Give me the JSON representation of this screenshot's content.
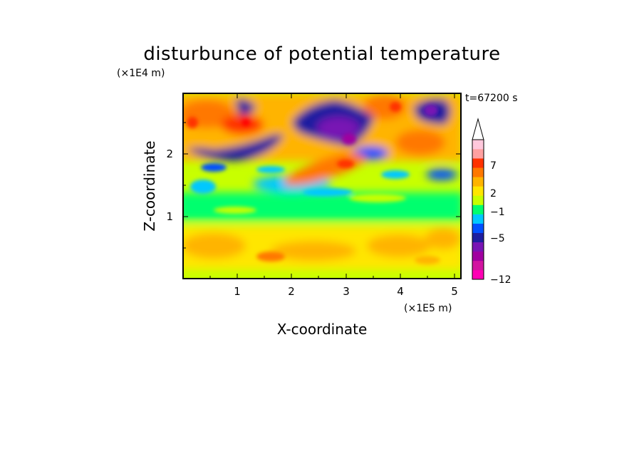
{
  "chart_data": {
    "type": "heatmap",
    "title": "disturbunce of potential temperature",
    "xlabel": "X-coordinate",
    "ylabel": "Z-coordinate",
    "x_scale_label": "(×1E5 m)",
    "y_scale_label": "(×1E4 m)",
    "time_label": "t=67200 s",
    "xlim": [
      0,
      5.12
    ],
    "ylim": [
      0,
      2.95
    ],
    "x_ticks": [
      "1",
      "2",
      "3",
      "4",
      "5"
    ],
    "y_ticks": [
      "1",
      "2"
    ],
    "colorbar": {
      "labels": [
        "7",
        "2",
        "−1",
        "−5",
        "−12"
      ],
      "colors": [
        "#ff00b4",
        "#d214a0",
        "#a000a0",
        "#7814b4",
        "#1e1ea0",
        "#0050ff",
        "#00c8ff",
        "#00ff6e",
        "#c8ff00",
        "#ffe600",
        "#ffb400",
        "#ff7800",
        "#ff3200",
        "#ffa0a0",
        "#ffc8dc"
      ],
      "extend": "max"
    },
    "features": [
      {
        "x": 0.15,
        "z": 2.55,
        "value": 5
      },
      {
        "x": 0.55,
        "z": 2.65,
        "value": 6
      },
      {
        "x": 1.0,
        "z": 2.45,
        "value": 5
      },
      {
        "x": 1.2,
        "z": 2.0,
        "value": -4
      },
      {
        "x": 0.6,
        "z": 1.95,
        "value": -4
      },
      {
        "x": 1.1,
        "z": 2.8,
        "value": -5
      },
      {
        "x": 2.6,
        "z": 2.55,
        "value": -6
      },
      {
        "x": 3.05,
        "z": 2.35,
        "value": -8
      },
      {
        "x": 3.0,
        "z": 1.8,
        "value": 7
      },
      {
        "x": 2.7,
        "z": 2.0,
        "value": 4
      },
      {
        "x": 3.4,
        "z": 2.8,
        "value": 5
      },
      {
        "x": 3.9,
        "z": 2.2,
        "value": 4
      },
      {
        "x": 4.5,
        "z": 2.75,
        "value": -6
      },
      {
        "x": 4.8,
        "z": 2.3,
        "value": 4
      },
      {
        "x": 4.4,
        "z": 1.95,
        "value": -3
      },
      {
        "x": 0.5,
        "z": 0.55,
        "value": 3
      },
      {
        "x": 2.2,
        "z": 0.45,
        "value": 3
      },
      {
        "x": 3.8,
        "z": 0.55,
        "value": 3
      },
      {
        "x": 4.7,
        "z": 0.65,
        "value": 3
      }
    ]
  }
}
